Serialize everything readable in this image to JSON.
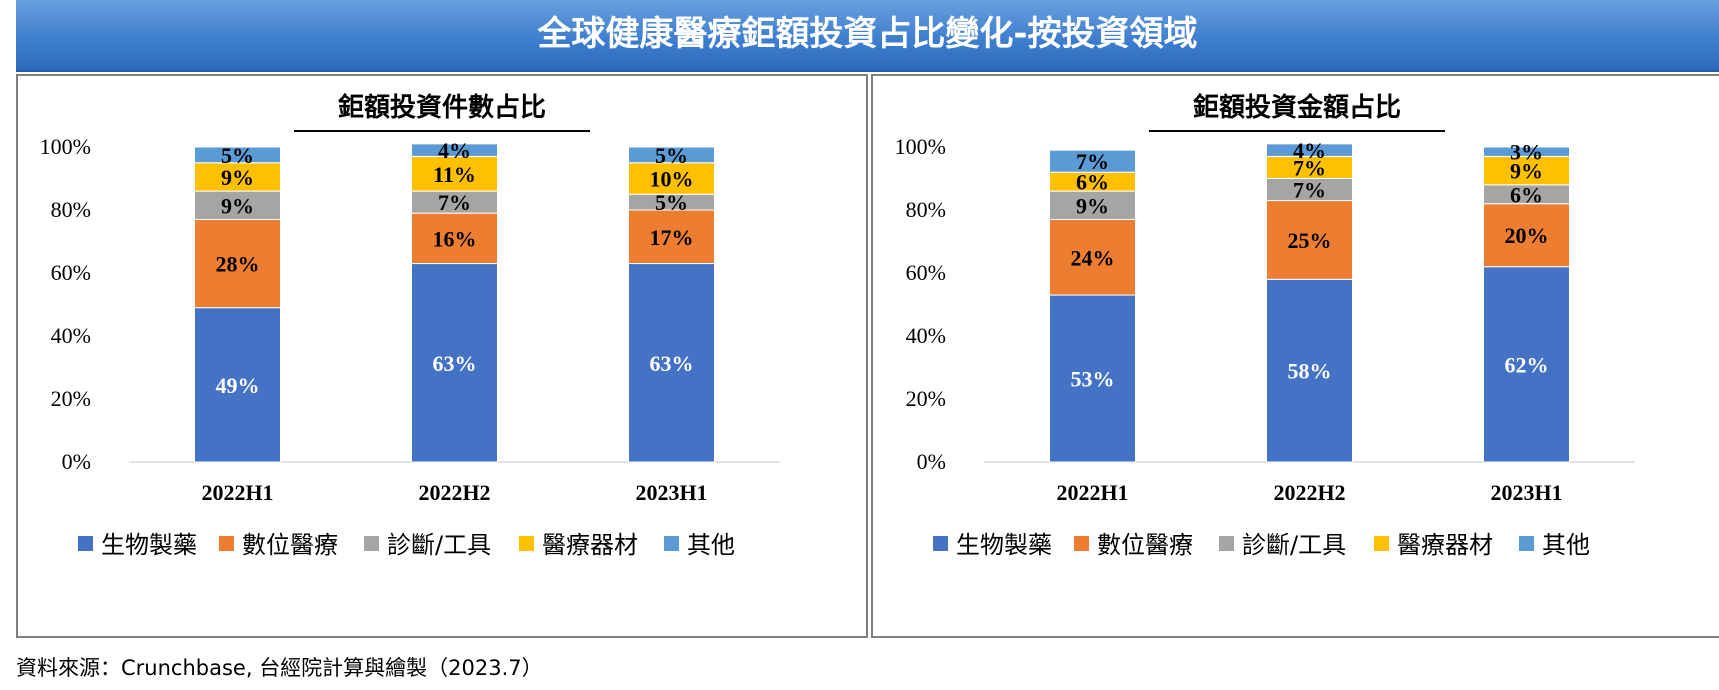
{
  "header": {
    "title": "全球健康醫療鉅額投資占比變化-按投資領域"
  },
  "footer": {
    "source": "資料來源：Crunchbase, 台經院計算與繪製（2023.7）"
  },
  "colors": {
    "生物製藥": "#4472c4",
    "數位醫療": "#ed7d31",
    "診斷/工具": "#a5a5a5",
    "醫療器材": "#ffc000",
    "其他": "#5b9bd5"
  },
  "chart_data": [
    {
      "type": "bar",
      "stacked": true,
      "title": "鉅額投資件數占比",
      "categories": [
        "2022H1",
        "2022H2",
        "2023H1"
      ],
      "ylim": [
        0,
        100
      ],
      "yticks": [
        "0%",
        "20%",
        "40%",
        "60%",
        "80%",
        "100%"
      ],
      "legend": "bottom",
      "series": [
        {
          "name": "生物製藥",
          "values": [
            49,
            63,
            63
          ],
          "labels": [
            "49%",
            "63%",
            "63%"
          ]
        },
        {
          "name": "數位醫療",
          "values": [
            28,
            16,
            17
          ],
          "labels": [
            "28%",
            "16%",
            "17%"
          ]
        },
        {
          "name": "診斷/工具",
          "values": [
            9,
            7,
            5
          ],
          "labels": [
            "9%",
            "7%",
            "5%"
          ]
        },
        {
          "name": "醫療器材",
          "values": [
            9,
            11,
            10
          ],
          "labels": [
            "9%",
            "11%",
            "10%"
          ]
        },
        {
          "name": "其他",
          "values": [
            5,
            4,
            5
          ],
          "labels": [
            "5%",
            "4%",
            "5%"
          ]
        }
      ]
    },
    {
      "type": "bar",
      "stacked": true,
      "title": "鉅額投資金額占比",
      "categories": [
        "2022H1",
        "2022H2",
        "2023H1"
      ],
      "ylim": [
        0,
        100
      ],
      "yticks": [
        "0%",
        "20%",
        "40%",
        "60%",
        "80%",
        "100%"
      ],
      "legend": "bottom",
      "series": [
        {
          "name": "生物製藥",
          "values": [
            53,
            58,
            62
          ],
          "labels": [
            "53%",
            "58%",
            "62%"
          ]
        },
        {
          "name": "數位醫療",
          "values": [
            24,
            25,
            20
          ],
          "labels": [
            "24%",
            "25%",
            "20%"
          ]
        },
        {
          "name": "診斷/工具",
          "values": [
            9,
            7,
            6
          ],
          "labels": [
            "9%",
            "7%",
            "6%"
          ]
        },
        {
          "name": "醫療器材",
          "values": [
            6,
            7,
            9
          ],
          "labels": [
            "6%",
            "7%",
            "9%"
          ]
        },
        {
          "name": "其他",
          "values": [
            7,
            4,
            3
          ],
          "labels": [
            "7%",
            "4%",
            "3%"
          ]
        }
      ]
    }
  ]
}
